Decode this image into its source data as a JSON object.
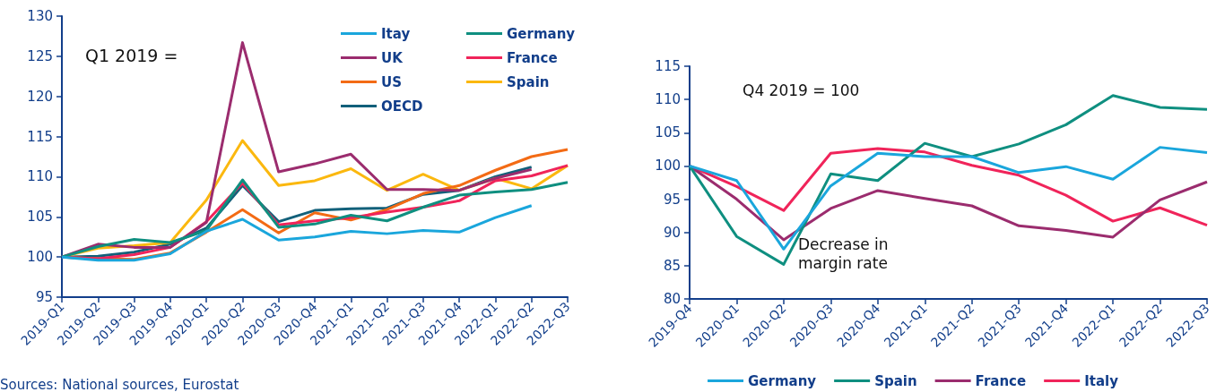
{
  "chart_data": [
    {
      "type": "line",
      "categories": [
        "2019-Q1",
        "2019-Q2",
        "2019-Q3",
        "2019-Q4",
        "2020-Q1",
        "2020-Q2",
        "2020-Q3",
        "2020-Q4",
        "2021-Q1",
        "2021-Q2",
        "2021-Q3",
        "2021-Q4",
        "2022-Q1",
        "2022-Q2",
        "2022-Q3"
      ],
      "series": [
        {
          "name": "Itay",
          "color": "#1aa6dc",
          "values": [
            100,
            99.6,
            99.6,
            100.4,
            103.2,
            104.7,
            102.1,
            102.5,
            103.2,
            102.9,
            103.3,
            103.1,
            104.9,
            106.4,
            null
          ]
        },
        {
          "name": "Germany",
          "color": "#0f8f80",
          "values": [
            100,
            101.3,
            102.2,
            101.8,
            103.3,
            109.6,
            103.7,
            104.1,
            105.2,
            104.5,
            106.2,
            107.7,
            108.1,
            108.4,
            109.3
          ]
        },
        {
          "name": "UK",
          "color": "#9b2c6e",
          "values": [
            100,
            101.6,
            101.2,
            101.2,
            104.3,
            126.7,
            110.6,
            111.6,
            112.8,
            108.4,
            108.4,
            108.3,
            109.8,
            110.9,
            null
          ]
        },
        {
          "name": "France",
          "color": "#f0245a",
          "values": [
            100,
            99.8,
            100.3,
            101.2,
            104.4,
            109.2,
            104.0,
            104.5,
            104.9,
            105.6,
            106.2,
            107.0,
            109.5,
            110.1,
            111.4
          ]
        },
        {
          "name": "US",
          "color": "#f36b15",
          "values": [
            100,
            99.8,
            99.7,
            100.5,
            103.1,
            105.9,
            103.0,
            105.5,
            104.6,
            105.9,
            107.9,
            108.9,
            110.8,
            112.5,
            113.4
          ]
        },
        {
          "name": "Spain",
          "color": "#fbb80f",
          "values": [
            100,
            101.1,
            101.4,
            101.8,
            107.1,
            114.5,
            108.9,
            109.5,
            111.0,
            108.3,
            110.3,
            108.3,
            109.8,
            108.5,
            111.4
          ]
        },
        {
          "name": "OECD",
          "color": "#12607a",
          "values": [
            100,
            100.1,
            100.6,
            101.6,
            103.6,
            108.9,
            104.4,
            105.8,
            106.0,
            106.1,
            107.8,
            108.3,
            110.0,
            111.2,
            null
          ]
        }
      ],
      "ylim": [
        95,
        130
      ],
      "yticks": [
        95,
        100,
        105,
        110,
        115,
        120,
        125,
        130
      ],
      "grid": false,
      "marker": "none",
      "legend": "top right",
      "annotations": [
        "Q1 2019 =",
        "Sources: National sources, Eurostat"
      ]
    },
    {
      "type": "line",
      "categories": [
        "2019-Q4",
        "2020-Q1",
        "2020-Q2",
        "2020-Q3",
        "2020-Q4",
        "2021-Q1",
        "2021-Q2",
        "2021-Q3",
        "2021-Q4",
        "2022-Q1",
        "2022-Q2",
        "2022-Q3"
      ],
      "series": [
        {
          "name": "Germany",
          "color": "#1aa6dc",
          "values": [
            100,
            97.8,
            87.5,
            97.0,
            101.9,
            101.4,
            101.4,
            99.0,
            99.9,
            98.0,
            102.8,
            102.0
          ]
        },
        {
          "name": "Spain",
          "color": "#0f8f80",
          "values": [
            100,
            89.4,
            85.2,
            98.8,
            97.8,
            103.4,
            101.4,
            103.3,
            106.2,
            110.6,
            108.8,
            108.5
          ]
        },
        {
          "name": "France",
          "color": "#9b2c6e",
          "values": [
            100,
            95.0,
            88.9,
            93.6,
            96.3,
            95.1,
            94.0,
            91.0,
            90.3,
            89.3,
            94.9,
            97.6
          ]
        },
        {
          "name": "Italy",
          "color": "#f0245a",
          "values": [
            100,
            96.9,
            93.3,
            101.9,
            102.6,
            102.1,
            100.1,
            98.6,
            95.6,
            91.7,
            93.7,
            91.1
          ]
        }
      ],
      "ylim": [
        80,
        115
      ],
      "yticks": [
        80,
        85,
        90,
        95,
        100,
        105,
        110,
        115
      ],
      "grid": false,
      "marker": "none",
      "legend": "bottom",
      "annotations": [
        "Q4 2019 = 100",
        "Decrease in margin rate"
      ]
    }
  ]
}
